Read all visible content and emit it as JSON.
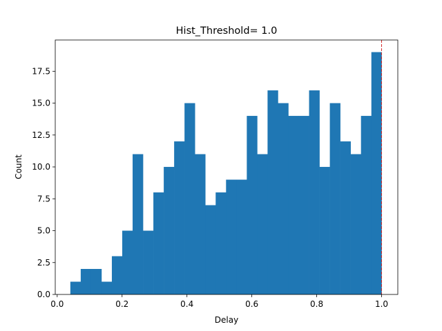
{
  "chart_data": {
    "type": "bar",
    "title": "Hist_Threshold= 1.0",
    "xlabel": "Delay",
    "ylabel": "Count",
    "xlim": [
      -0.006,
      1.05
    ],
    "ylim": [
      0,
      19.95
    ],
    "xticks": [
      0.0,
      0.2,
      0.4,
      0.6,
      0.8,
      1.0
    ],
    "xtick_labels": [
      "0.0",
      "0.2",
      "0.4",
      "0.6",
      "0.8",
      "1.0"
    ],
    "yticks": [
      0.0,
      2.5,
      5.0,
      7.5,
      10.0,
      12.5,
      15.0,
      17.5
    ],
    "ytick_labels": [
      "0.0",
      "2.5",
      "5.0",
      "7.5",
      "10.0",
      "12.5",
      "15.0",
      "17.5"
    ],
    "bin_edges": [
      0.0405,
      0.0725,
      0.1045,
      0.1365,
      0.1685,
      0.2005,
      0.2325,
      0.2645,
      0.2965,
      0.3285,
      0.3605,
      0.3925,
      0.4245,
      0.4565,
      0.4885,
      0.5205,
      0.5525,
      0.5845,
      0.6165,
      0.6485,
      0.6805,
      0.7125,
      0.7445,
      0.7765,
      0.8085,
      0.8405,
      0.8725,
      0.9045,
      0.9365,
      0.9685,
      1.0
    ],
    "counts": [
      1,
      2,
      2,
      1,
      3,
      5,
      11,
      5,
      8,
      10,
      12,
      15,
      11,
      7,
      8,
      9,
      9,
      14,
      11,
      16,
      15,
      14,
      14,
      16,
      10,
      15,
      12,
      11,
      14,
      19
    ],
    "threshold": 1.0,
    "grid": false,
    "legend": "none",
    "colors": {
      "bar": "#1f77b4",
      "threshold_line": "#d62728",
      "axes": "#000000"
    }
  }
}
